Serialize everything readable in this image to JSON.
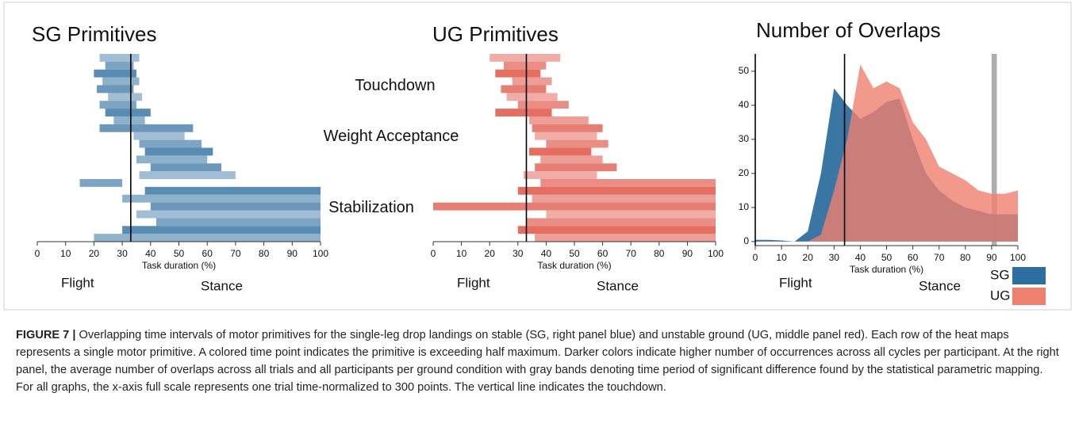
{
  "chart_data": [
    {
      "type": "heatmap",
      "title": "SG Primitives",
      "color": "#2f6f9f",
      "xlabel": "Task duration (%)",
      "xlim": [
        0,
        100
      ],
      "xticks": [
        0,
        10,
        20,
        30,
        40,
        50,
        60,
        70,
        80,
        90,
        100
      ],
      "vlines": [
        33
      ],
      "annotations": [
        "Flight",
        "Stance"
      ],
      "rows": [
        [
          22,
          36
        ],
        [
          24,
          34
        ],
        [
          20,
          35
        ],
        [
          23,
          36
        ],
        [
          21,
          34
        ],
        [
          25,
          37
        ],
        [
          22,
          35
        ],
        [
          24,
          40
        ],
        [
          27,
          38
        ],
        [
          22,
          55
        ],
        [
          34,
          52
        ],
        [
          36,
          58
        ],
        [
          38,
          62
        ],
        [
          35,
          60
        ],
        [
          40,
          65
        ],
        [
          36,
          70
        ],
        [
          15,
          30
        ],
        [
          38,
          100
        ],
        [
          30,
          100
        ],
        [
          40,
          100
        ],
        [
          35,
          100
        ],
        [
          42,
          100
        ],
        [
          30,
          100
        ],
        [
          20,
          100
        ]
      ]
    },
    {
      "type": "heatmap",
      "title": "UG Primitives",
      "color": "#de4a3c",
      "xlabel": "Task duration (%)",
      "xlim": [
        0,
        100
      ],
      "xticks": [
        0,
        10,
        20,
        30,
        40,
        50,
        60,
        70,
        80,
        90,
        100
      ],
      "vlines": [
        33
      ],
      "annotations": [
        "Flight",
        "Stance"
      ],
      "rows": [
        [
          20,
          45
        ],
        [
          25,
          40
        ],
        [
          22,
          38
        ],
        [
          28,
          42
        ],
        [
          24,
          40
        ],
        [
          26,
          44
        ],
        [
          30,
          48
        ],
        [
          22,
          42
        ],
        [
          34,
          55
        ],
        [
          35,
          60
        ],
        [
          36,
          58
        ],
        [
          40,
          62
        ],
        [
          34,
          56
        ],
        [
          38,
          60
        ],
        [
          36,
          65
        ],
        [
          32,
          58
        ],
        [
          38,
          100
        ],
        [
          30,
          100
        ],
        [
          35,
          100
        ],
        [
          0,
          100
        ],
        [
          40,
          100
        ],
        [
          33,
          100
        ],
        [
          30,
          100
        ],
        [
          36,
          100
        ]
      ]
    },
    {
      "type": "area",
      "title": "Number of Overlaps",
      "xlabel": "Task duration (%)",
      "xlim": [
        0,
        100
      ],
      "ylim": [
        -1.2,
        55.1
      ],
      "xticks": [
        0,
        10,
        20,
        30,
        40,
        50,
        60,
        70,
        80,
        90,
        100
      ],
      "yticks": [
        0,
        10,
        20,
        30,
        40,
        50
      ],
      "vlines": [
        0,
        34
      ],
      "bands": [
        [
          90,
          92
        ]
      ],
      "band_color": "#9a9a9a",
      "annotations": [
        "Flight",
        "Stance"
      ],
      "x": [
        0,
        5,
        10,
        15,
        20,
        25,
        30,
        35,
        40,
        45,
        50,
        55,
        60,
        65,
        70,
        75,
        80,
        85,
        90,
        95,
        100
      ],
      "series": [
        {
          "name": "SG",
          "color": "#2f6f9f",
          "values": [
            0.5,
            0.5,
            0.3,
            0,
            3,
            20,
            45,
            40,
            36,
            38,
            41,
            42,
            30,
            20,
            15,
            12,
            10,
            9,
            8,
            8,
            8
          ]
        },
        {
          "name": "UG",
          "color": "#f0806e",
          "values": [
            0,
            0,
            0,
            0,
            0,
            2,
            15,
            30,
            52,
            45,
            47,
            45,
            35,
            30,
            22,
            20,
            18,
            15,
            14,
            14,
            15
          ]
        }
      ]
    }
  ],
  "phase_labels": [
    "Touchdown",
    "Weight Acceptance",
    "Stabilization"
  ],
  "caption": {
    "label": "FIGURE 7 |",
    "text": "Overlapping time intervals of motor primitives for the single-leg drop landings on stable (SG, right panel blue) and unstable ground (UG, middle panel red). Each row of the heat maps represents a single motor primitive. A colored time point indicates the primitive is exceeding half maximum. Darker colors indicate higher number of occurrences across all cycles per participant. At the right panel, the average number of overlaps across all trials and all participants per ground condition with gray bands denoting time period of significant difference found by the statistical parametric mapping. For all graphs, the x-axis full scale represents one trial time-normalized to 300 points. The vertical line indicates the touchdown."
  }
}
